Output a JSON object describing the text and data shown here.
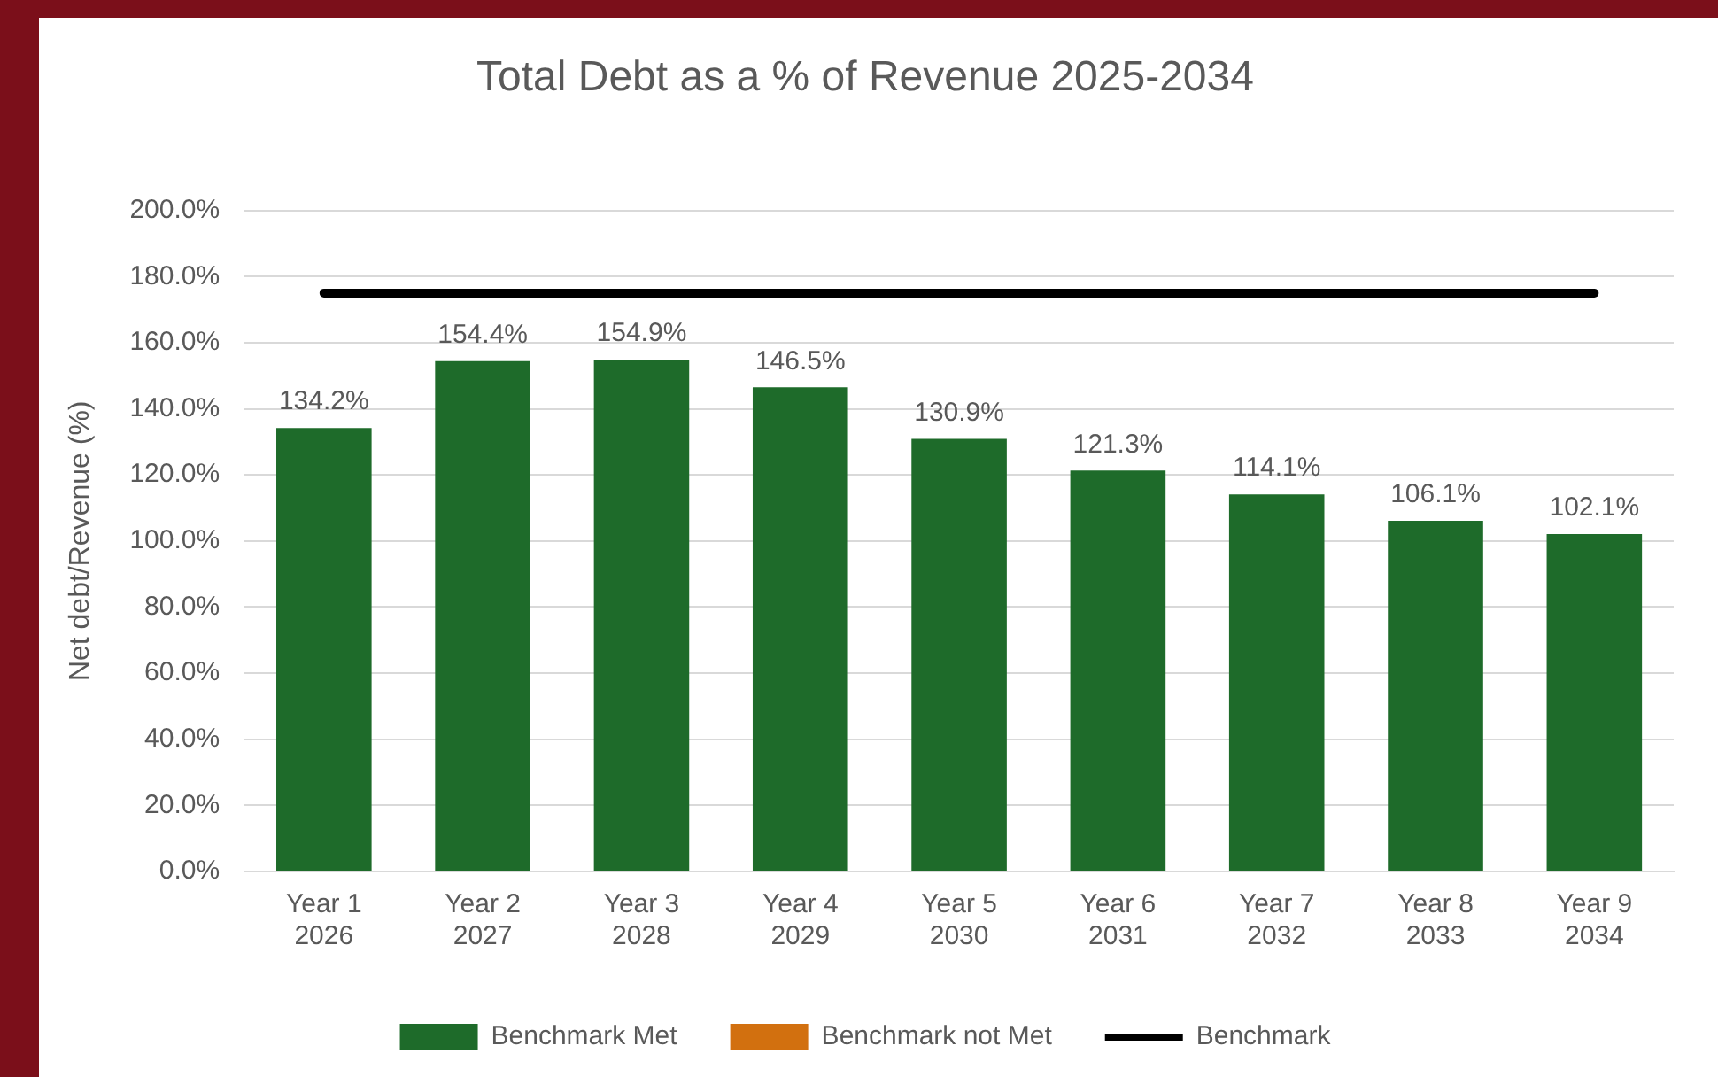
{
  "chart_data": {
    "type": "bar",
    "title": "Total Debt as a % of Revenue 2025-2034",
    "ylabel": "Net debt/Revenue (%)",
    "categories": [
      "Year 1\n2026",
      "Year 2\n2027",
      "Year 3\n2028",
      "Year 4\n2029",
      "Year 5\n2030",
      "Year 6\n2031",
      "Year 7\n2032",
      "Year 8\n2033",
      "Year 9\n2034"
    ],
    "series": [
      {
        "name": "Benchmark Met",
        "color": "#1e6b2a",
        "values": [
          134.2,
          154.4,
          154.9,
          146.5,
          130.9,
          121.3,
          114.1,
          106.1,
          102.1
        ],
        "value_labels": [
          "134.2%",
          "154.4%",
          "154.9%",
          "146.5%",
          "130.9%",
          "121.3%",
          "114.1%",
          "106.1%",
          "102.1%"
        ]
      },
      {
        "name": "Benchmark not Met",
        "color": "#d2700f",
        "values": [
          null,
          null,
          null,
          null,
          null,
          null,
          null,
          null,
          null
        ]
      },
      {
        "name": "Benchmark",
        "type": "line",
        "color": "#000000",
        "values": [
          175,
          175,
          175,
          175,
          175,
          175,
          175,
          175,
          175
        ]
      }
    ],
    "ylim": [
      0,
      200
    ],
    "yticks": [
      {
        "value": 0,
        "label": "0.0%"
      },
      {
        "value": 20,
        "label": "20.0%"
      },
      {
        "value": 40,
        "label": "40.0%"
      },
      {
        "value": 60,
        "label": "60.0%"
      },
      {
        "value": 80,
        "label": "80.0%"
      },
      {
        "value": 100,
        "label": "100.0%"
      },
      {
        "value": 120,
        "label": "120.0%"
      },
      {
        "value": 140,
        "label": "140.0%"
      },
      {
        "value": 160,
        "label": "160.0%"
      },
      {
        "value": 180,
        "label": "180.0%"
      },
      {
        "value": 200,
        "label": "200.0%"
      }
    ],
    "grid": "y",
    "legend": "bottom",
    "marker": "none"
  }
}
